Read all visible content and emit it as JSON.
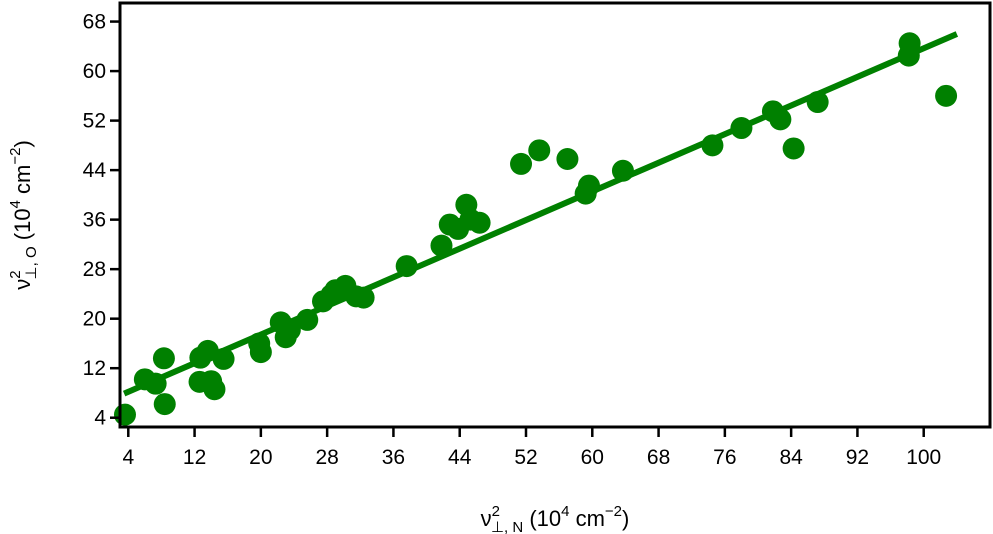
{
  "chart_data": {
    "type": "scatter",
    "title": "",
    "xlabel": {
      "base": "ν",
      "sup": "2",
      "sub": "⊥, N",
      "rest": " (10",
      "unit_sup": "4",
      "unit": " cm",
      "unit_sup2": "−2",
      "close": ")"
    },
    "ylabel": {
      "base": "ν",
      "sup": "2",
      "sub": "⊥, O",
      "rest": " (10",
      "unit_sup": "4",
      "unit": " cm",
      "unit_sup2": "−2",
      "close": ")"
    },
    "xlim": [
      3,
      108
    ],
    "ylim": [
      2.5,
      71
    ],
    "xticks": [
      "4",
      "12",
      "20",
      "28",
      "36",
      "44",
      "52",
      "60",
      "68",
      "76",
      "84",
      "92",
      "100"
    ],
    "yticks": [
      "4",
      "12",
      "20",
      "28",
      "36",
      "44",
      "52",
      "60",
      "68"
    ],
    "grid": false,
    "color": "#008000",
    "points": [
      [
        3.6,
        4.5
      ],
      [
        6.0,
        10.2
      ],
      [
        7.3,
        9.5
      ],
      [
        8.3,
        13.6
      ],
      [
        8.4,
        6.2
      ],
      [
        12.6,
        9.8
      ],
      [
        12.7,
        13.7
      ],
      [
        13.6,
        14.8
      ],
      [
        14.0,
        9.9
      ],
      [
        14.4,
        8.6
      ],
      [
        15.5,
        13.5
      ],
      [
        19.8,
        16.0
      ],
      [
        20.0,
        14.6
      ],
      [
        22.4,
        19.4
      ],
      [
        23.0,
        17.0
      ],
      [
        23.5,
        18.2
      ],
      [
        25.6,
        19.8
      ],
      [
        27.5,
        22.8
      ],
      [
        28.5,
        23.8
      ],
      [
        29.0,
        24.6
      ],
      [
        30.2,
        25.3
      ],
      [
        31.5,
        23.6
      ],
      [
        32.4,
        23.4
      ],
      [
        37.6,
        28.5
      ],
      [
        41.8,
        31.8
      ],
      [
        42.8,
        35.2
      ],
      [
        43.8,
        34.5
      ],
      [
        44.8,
        38.4
      ],
      [
        45.3,
        36.0
      ],
      [
        46.4,
        35.5
      ],
      [
        51.4,
        45.0
      ],
      [
        53.6,
        47.2
      ],
      [
        57.0,
        45.8
      ],
      [
        59.2,
        40.2
      ],
      [
        59.6,
        41.5
      ],
      [
        63.7,
        43.9
      ],
      [
        74.5,
        48.0
      ],
      [
        78.0,
        50.8
      ],
      [
        81.8,
        53.5
      ],
      [
        82.7,
        52.2
      ],
      [
        84.3,
        47.5
      ],
      [
        87.2,
        55.0
      ],
      [
        98.2,
        62.5
      ],
      [
        98.3,
        64.5
      ],
      [
        102.7,
        56.0
      ]
    ],
    "fit_line": {
      "x": [
        3.5,
        104.0
      ],
      "y": [
        7.9,
        66.0
      ]
    }
  }
}
